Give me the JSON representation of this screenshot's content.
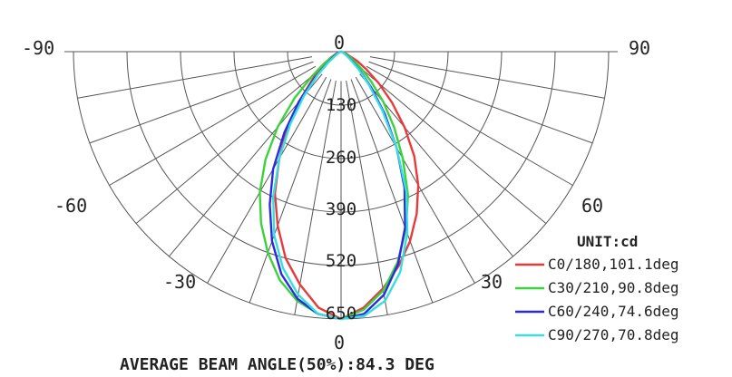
{
  "chart_data": {
    "type": "polar",
    "unit_label": "UNIT:cd",
    "angle_labels": {
      "left_top": "-90",
      "right_top": "90",
      "left_mid": "-60",
      "right_mid": "60",
      "left_low": "-30",
      "right_low": "30",
      "top": "0",
      "bottom": "0"
    },
    "radial_ticks": [
      "130",
      "260",
      "390",
      "520",
      "650"
    ],
    "r_max": 650,
    "footer": "AVERAGE BEAM ANGLE(50%):84.3 DEG",
    "series": [
      {
        "name": "C0/180,101.1deg",
        "color": "#e8393b",
        "points": [
          [
            -90,
            0
          ],
          [
            -80,
            0
          ],
          [
            -70,
            10
          ],
          [
            -60,
            30
          ],
          [
            -50,
            75
          ],
          [
            -40,
            160
          ],
          [
            -35,
            230
          ],
          [
            -30,
            300
          ],
          [
            -25,
            380
          ],
          [
            -20,
            450
          ],
          [
            -15,
            520
          ],
          [
            -10,
            575
          ],
          [
            -5,
            625
          ],
          [
            0,
            650
          ],
          [
            5,
            625
          ],
          [
            10,
            585
          ],
          [
            15,
            540
          ],
          [
            20,
            490
          ],
          [
            25,
            435
          ],
          [
            30,
            375
          ],
          [
            35,
            310
          ],
          [
            40,
            240
          ],
          [
            45,
            175
          ],
          [
            50,
            120
          ],
          [
            55,
            75
          ],
          [
            60,
            45
          ],
          [
            70,
            12
          ],
          [
            80,
            0
          ],
          [
            90,
            0
          ]
        ]
      },
      {
        "name": "C30/210,90.8deg",
        "color": "#3cd23c",
        "points": [
          [
            -90,
            0
          ],
          [
            -80,
            0
          ],
          [
            -70,
            5
          ],
          [
            -60,
            20
          ],
          [
            -55,
            50
          ],
          [
            -50,
            90
          ],
          [
            -45,
            160
          ],
          [
            -40,
            240
          ],
          [
            -35,
            320
          ],
          [
            -30,
            395
          ],
          [
            -25,
            460
          ],
          [
            -20,
            520
          ],
          [
            -15,
            575
          ],
          [
            -10,
            615
          ],
          [
            -5,
            640
          ],
          [
            0,
            650
          ],
          [
            5,
            630
          ],
          [
            10,
            590
          ],
          [
            15,
            530
          ],
          [
            20,
            460
          ],
          [
            25,
            385
          ],
          [
            30,
            300
          ],
          [
            35,
            225
          ],
          [
            40,
            160
          ],
          [
            45,
            105
          ],
          [
            50,
            65
          ],
          [
            60,
            25
          ],
          [
            70,
            8
          ],
          [
            80,
            0
          ],
          [
            90,
            0
          ]
        ]
      },
      {
        "name": "C60/240,74.6deg",
        "color": "#2a2ae0",
        "points": [
          [
            -90,
            0
          ],
          [
            -80,
            0
          ],
          [
            -70,
            5
          ],
          [
            -60,
            15
          ],
          [
            -50,
            45
          ],
          [
            -45,
            90
          ],
          [
            -40,
            160
          ],
          [
            -35,
            240
          ],
          [
            -30,
            330
          ],
          [
            -25,
            410
          ],
          [
            -20,
            490
          ],
          [
            -15,
            560
          ],
          [
            -10,
            610
          ],
          [
            -5,
            640
          ],
          [
            0,
            650
          ],
          [
            5,
            640
          ],
          [
            10,
            600
          ],
          [
            15,
            535
          ],
          [
            20,
            455
          ],
          [
            25,
            365
          ],
          [
            30,
            270
          ],
          [
            35,
            185
          ],
          [
            40,
            115
          ],
          [
            45,
            65
          ],
          [
            50,
            35
          ],
          [
            60,
            12
          ],
          [
            70,
            3
          ],
          [
            80,
            0
          ],
          [
            90,
            0
          ]
        ]
      },
      {
        "name": "C90/270,70.8deg",
        "color": "#38dde0",
        "points": [
          [
            -90,
            0
          ],
          [
            -80,
            0
          ],
          [
            -70,
            3
          ],
          [
            -60,
            10
          ],
          [
            -50,
            40
          ],
          [
            -45,
            80
          ],
          [
            -40,
            140
          ],
          [
            -35,
            215
          ],
          [
            -30,
            300
          ],
          [
            -25,
            390
          ],
          [
            -20,
            475
          ],
          [
            -15,
            545
          ],
          [
            -10,
            600
          ],
          [
            -5,
            640
          ],
          [
            0,
            650
          ],
          [
            5,
            645
          ],
          [
            10,
            615
          ],
          [
            15,
            555
          ],
          [
            20,
            470
          ],
          [
            25,
            375
          ],
          [
            30,
            270
          ],
          [
            35,
            175
          ],
          [
            40,
            105
          ],
          [
            45,
            60
          ],
          [
            50,
            30
          ],
          [
            60,
            10
          ],
          [
            70,
            2
          ],
          [
            80,
            0
          ],
          [
            90,
            0
          ]
        ]
      }
    ]
  }
}
